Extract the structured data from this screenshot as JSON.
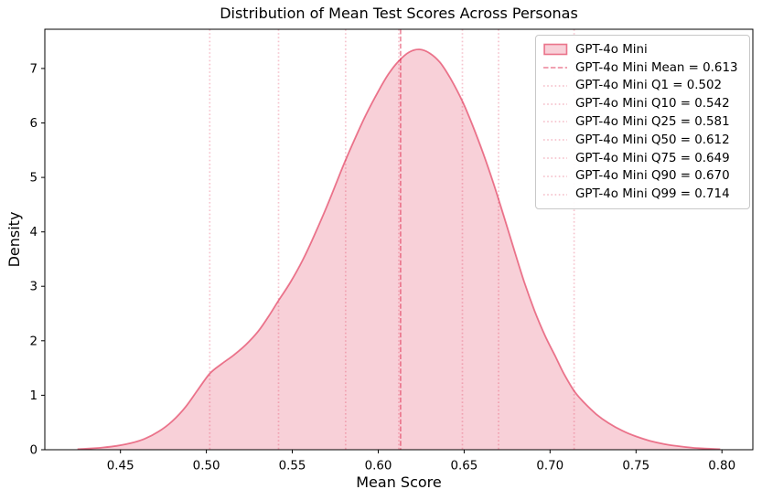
{
  "title": "Distribution of Mean Test Scores Across Personas",
  "colors": {
    "base_color_name": "crimson",
    "curve_line": "rgba(220,20,60,0.55)",
    "curve_fill": "rgba(220,20,60,0.20)",
    "mean_line": "rgba(220,20,60,0.45)",
    "quantile_line": "rgba(220,20,60,0.25)",
    "axis": "#000000",
    "legend_border": "#c8c8c8"
  },
  "chart_data": {
    "type": "area",
    "subtype": "kde-density",
    "title": "Distribution of Mean Test Scores Across Personas",
    "xlabel": "Mean Score",
    "ylabel": "Density",
    "xlim": [
      0.406,
      0.818
    ],
    "ylim": [
      0,
      7.72
    ],
    "grid": false,
    "legend_position": "upper right",
    "x_ticks": [
      {
        "value": 0.45,
        "label": "0.45"
      },
      {
        "value": 0.5,
        "label": "0.50"
      },
      {
        "value": 0.55,
        "label": "0.55"
      },
      {
        "value": 0.6,
        "label": "0.60"
      },
      {
        "value": 0.65,
        "label": "0.65"
      },
      {
        "value": 0.7,
        "label": "0.70"
      },
      {
        "value": 0.75,
        "label": "0.75"
      },
      {
        "value": 0.8,
        "label": "0.80"
      }
    ],
    "y_ticks": [
      {
        "value": 0,
        "label": "0"
      },
      {
        "value": 1,
        "label": "1"
      },
      {
        "value": 2,
        "label": "2"
      },
      {
        "value": 3,
        "label": "3"
      },
      {
        "value": 4,
        "label": "4"
      },
      {
        "value": 5,
        "label": "5"
      },
      {
        "value": 6,
        "label": "6"
      },
      {
        "value": 7,
        "label": "7"
      }
    ],
    "series": [
      {
        "name": "GPT-4o Mini",
        "points": [
          [
            0.425,
            0.01
          ],
          [
            0.432,
            0.022
          ],
          [
            0.44,
            0.042
          ],
          [
            0.448,
            0.072
          ],
          [
            0.456,
            0.12
          ],
          [
            0.464,
            0.2
          ],
          [
            0.472,
            0.33
          ],
          [
            0.48,
            0.52
          ],
          [
            0.488,
            0.79
          ],
          [
            0.495,
            1.1
          ],
          [
            0.502,
            1.4
          ],
          [
            0.509,
            1.58
          ],
          [
            0.516,
            1.74
          ],
          [
            0.523,
            1.93
          ],
          [
            0.53,
            2.17
          ],
          [
            0.536,
            2.44
          ],
          [
            0.542,
            2.74
          ],
          [
            0.549,
            3.08
          ],
          [
            0.556,
            3.48
          ],
          [
            0.563,
            3.95
          ],
          [
            0.57,
            4.46
          ],
          [
            0.576,
            4.93
          ],
          [
            0.581,
            5.32
          ],
          [
            0.587,
            5.75
          ],
          [
            0.593,
            6.16
          ],
          [
            0.6,
            6.58
          ],
          [
            0.606,
            6.9
          ],
          [
            0.612,
            7.14
          ],
          [
            0.618,
            7.3
          ],
          [
            0.624,
            7.35
          ],
          [
            0.63,
            7.28
          ],
          [
            0.636,
            7.11
          ],
          [
            0.642,
            6.82
          ],
          [
            0.649,
            6.4
          ],
          [
            0.655,
            5.95
          ],
          [
            0.661,
            5.45
          ],
          [
            0.667,
            4.9
          ],
          [
            0.673,
            4.3
          ],
          [
            0.679,
            3.68
          ],
          [
            0.685,
            3.08
          ],
          [
            0.691,
            2.55
          ],
          [
            0.697,
            2.1
          ],
          [
            0.703,
            1.72
          ],
          [
            0.708,
            1.4
          ],
          [
            0.714,
            1.08
          ],
          [
            0.72,
            0.86
          ],
          [
            0.727,
            0.65
          ],
          [
            0.734,
            0.49
          ],
          [
            0.742,
            0.35
          ],
          [
            0.75,
            0.245
          ],
          [
            0.758,
            0.165
          ],
          [
            0.766,
            0.108
          ],
          [
            0.774,
            0.068
          ],
          [
            0.782,
            0.04
          ],
          [
            0.79,
            0.022
          ],
          [
            0.799,
            0.01
          ]
        ]
      }
    ],
    "stats": {
      "mean": 0.613,
      "quantiles": {
        "Q1": 0.502,
        "Q10": 0.542,
        "Q25": 0.581,
        "Q50": 0.612,
        "Q75": 0.649,
        "Q90": 0.67,
        "Q99": 0.714
      }
    },
    "mean_line": {
      "value": 0.613,
      "style": "dashed"
    },
    "quantile_lines": [
      {
        "name": "Q1",
        "value": 0.502,
        "style": "dotted"
      },
      {
        "name": "Q10",
        "value": 0.542,
        "style": "dotted"
      },
      {
        "name": "Q25",
        "value": 0.581,
        "style": "dotted"
      },
      {
        "name": "Q50",
        "value": 0.612,
        "style": "dotted"
      },
      {
        "name": "Q75",
        "value": 0.649,
        "style": "dotted"
      },
      {
        "name": "Q90",
        "value": 0.67,
        "style": "dotted"
      },
      {
        "name": "Q99",
        "value": 0.714,
        "style": "dotted"
      }
    ],
    "legend": [
      {
        "label": "GPT-4o Mini",
        "marker": "patch"
      },
      {
        "label": "GPT-4o Mini Mean = 0.613",
        "marker": "dashed"
      },
      {
        "label": "GPT-4o Mini Q1 = 0.502",
        "marker": "dotted"
      },
      {
        "label": "GPT-4o Mini Q10 = 0.542",
        "marker": "dotted"
      },
      {
        "label": "GPT-4o Mini Q25 = 0.581",
        "marker": "dotted"
      },
      {
        "label": "GPT-4o Mini Q50 = 0.612",
        "marker": "dotted"
      },
      {
        "label": "GPT-4o Mini Q75 = 0.649",
        "marker": "dotted"
      },
      {
        "label": "GPT-4o Mini Q90 = 0.670",
        "marker": "dotted"
      },
      {
        "label": "GPT-4o Mini Q99 = 0.714",
        "marker": "dotted"
      }
    ]
  }
}
